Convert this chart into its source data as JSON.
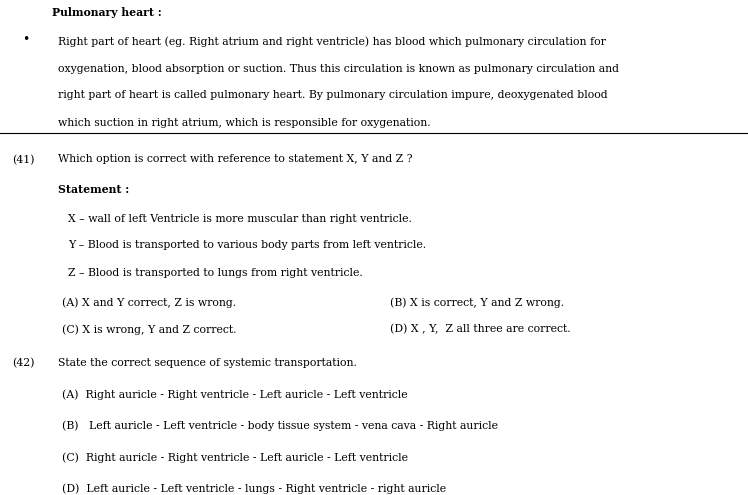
{
  "bg_color": "#ffffff",
  "text_color": "#000000",
  "title_bold": "Pulmonary heart :",
  "bullet_text_lines": [
    "Right part of heart (eg. Right atrium and right ventricle) has blood which pulmonary circulation for",
    "oxygenation, blood absorption or suction. Thus this circulation is known as pulmonary circulation and",
    "right part of heart is called pulmonary heart. By pulmonary circulation impure, deoxygenated blood",
    "which suction in right atrium, which is responsible for oxygenation."
  ],
  "q41_num": "(41)",
  "q41_text": "Which option is correct with reference to statement X, Y and Z ?",
  "stmt_bold": "Statement :",
  "stmt_x": "X – wall of left Ventricle is more muscular than right ventricle.",
  "stmt_y": "Y – Blood is transported to various body parts from left ventricle.",
  "stmt_z": "Z – Blood is transported to lungs from right ventricle.",
  "opt41_a": "(A) X and Y correct, Z is wrong.",
  "opt41_b": "(B) X is correct, Y and Z wrong.",
  "opt41_c": "(C) X is wrong, Y and Z correct.",
  "opt41_d": "(D) X , Y,  Z all three are correct.",
  "q42_num": "(42)",
  "q42_text": "State the correct sequence of systemic transportation.",
  "opt42_a": "(A)  Right auricle - Right ventricle - Left auricle - Left ventricle",
  "opt42_b": "(B)   Left auricle - Left ventricle - body tissue system - vena cava - Right auricle",
  "opt42_c": "(C)  Right auricle - Right ventricle - Left auricle - Left ventricle",
  "opt42_d": "(D)  Left auricle - Left ventricle - lungs - Right ventricle - right auricle",
  "font_family": "DejaVu Serif",
  "font_size": 7.8
}
